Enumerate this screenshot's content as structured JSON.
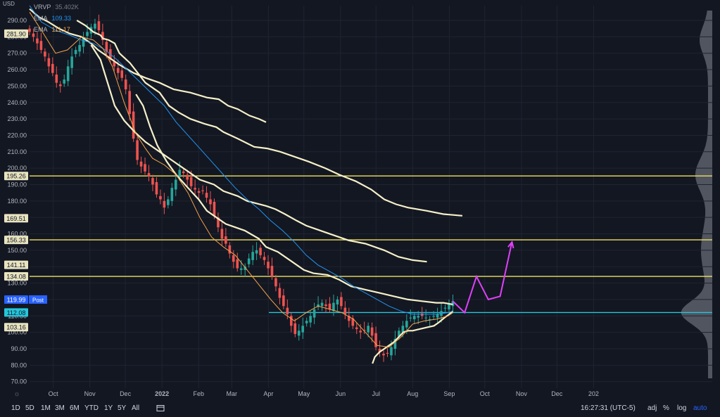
{
  "legend": {
    "vrvp_label": "VRVP",
    "vrvp_value": "35.402K",
    "ema1_label": "EMA",
    "ema1_value": "109.33",
    "ema2_label": "EMA",
    "ema2_value": "111.17",
    "ema1_color": "#2196f3",
    "ema2_color": "#f7a44a"
  },
  "currency": "USD",
  "toolbar": {
    "timeframes": [
      "1D",
      "5D",
      "1M",
      "3M",
      "6M",
      "YTD",
      "1Y",
      "5Y",
      "All"
    ],
    "clock": "16:27:31 (UTC-5)",
    "adj": "adj",
    "pct": "%",
    "log": "log",
    "auto": "auto",
    "icon": "calendar-range-icon"
  },
  "chart_data": {
    "type": "candlestick",
    "x_ticks": [
      "Oct",
      "Nov",
      "Dec",
      "2022",
      "Feb",
      "Mar",
      "Apr",
      "May",
      "Jun",
      "Jul",
      "Aug",
      "Sep",
      "Oct",
      "Nov",
      "Dec",
      "202"
    ],
    "y_ticks": [
      290,
      280,
      270,
      260,
      250,
      240,
      230,
      220,
      210,
      200,
      190,
      180,
      170,
      160,
      150,
      140,
      130,
      120,
      110,
      100,
      90,
      80,
      70
    ],
    "ylim": [
      66,
      299
    ],
    "price_labels": [
      {
        "value": 281.9,
        "text": "281.90",
        "bg": "#e8e4c0",
        "fg": "#131722"
      },
      {
        "value": 195.26,
        "text": "195.26",
        "bg": "#e8e4c0",
        "fg": "#131722"
      },
      {
        "value": 169.51,
        "text": "169.51",
        "bg": "#e8e4c0",
        "fg": "#131722"
      },
      {
        "value": 156.33,
        "text": "156.33",
        "bg": "#e8e4c0",
        "fg": "#131722"
      },
      {
        "value": 141.11,
        "text": "141.11",
        "bg": "#e8e4c0",
        "fg": "#131722"
      },
      {
        "value": 134.08,
        "text": "134.08",
        "bg": "#e8e4c0",
        "fg": "#131722"
      },
      {
        "value": 119.99,
        "text": "119.99",
        "bg": "#2962ff",
        "fg": "#ffffff",
        "tag": "Post"
      },
      {
        "value": 112.08,
        "text": "112.08",
        "bg": "#26c6da",
        "fg": "#131722"
      },
      {
        "value": 103.16,
        "text": "103.16",
        "bg": "#e8e4c0",
        "fg": "#131722"
      }
    ],
    "horizontal_levels": [
      {
        "value": 195.26,
        "color": "#f0e060"
      },
      {
        "value": 156.33,
        "color": "#f0e060"
      },
      {
        "value": 134.08,
        "color": "#f0e060"
      },
      {
        "value": 112.08,
        "color": "#26c6da"
      }
    ],
    "band_color": "#f5f0c8",
    "bands": [
      [
        [
          0,
          297
        ],
        [
          8,
          292
        ],
        [
          16,
          289
        ],
        [
          25,
          285
        ],
        [
          34,
          282
        ],
        [
          44,
          280
        ],
        [
          52,
          276
        ],
        [
          58,
          272
        ],
        [
          66,
          268
        ],
        [
          76,
          263
        ],
        [
          88,
          258
        ],
        [
          98,
          255
        ],
        [
          110,
          252
        ],
        [
          122,
          248
        ],
        [
          136,
          246
        ],
        [
          150,
          243
        ],
        [
          160,
          242
        ],
        [
          168,
          238
        ],
        [
          176,
          236
        ],
        [
          186,
          232
        ],
        [
          194,
          230
        ],
        [
          200,
          228
        ]
      ],
      [
        [
          40,
          290
        ],
        [
          47,
          287
        ],
        [
          54,
          283
        ],
        [
          60,
          281
        ],
        [
          62,
          279
        ],
        [
          67,
          278
        ],
        [
          72,
          276
        ],
        [
          76,
          270
        ],
        [
          85,
          264
        ],
        [
          98,
          252
        ],
        [
          110,
          246
        ],
        [
          118,
          238
        ],
        [
          126,
          234
        ],
        [
          136,
          230
        ],
        [
          148,
          227
        ],
        [
          158,
          225
        ],
        [
          164,
          222
        ],
        [
          176,
          218
        ],
        [
          190,
          213
        ],
        [
          201,
          212
        ],
        [
          212,
          210
        ],
        [
          224,
          207
        ],
        [
          236,
          204
        ],
        [
          250,
          200
        ],
        [
          262,
          196
        ],
        [
          276,
          192
        ],
        [
          289,
          187
        ],
        [
          300,
          181
        ],
        [
          310,
          178
        ],
        [
          320,
          176
        ],
        [
          336,
          174
        ],
        [
          350,
          172
        ],
        [
          366,
          171
        ]
      ],
      [
        [
          52,
          275
        ],
        [
          60,
          266
        ],
        [
          66,
          252
        ],
        [
          72,
          238
        ],
        [
          80,
          229
        ],
        [
          89,
          222
        ],
        [
          98,
          216
        ],
        [
          110,
          210
        ],
        [
          124,
          203
        ],
        [
          136,
          197
        ],
        [
          144,
          193
        ],
        [
          156,
          190
        ],
        [
          164,
          186
        ],
        [
          176,
          183
        ],
        [
          184,
          180
        ],
        [
          200,
          177
        ],
        [
          208,
          175
        ],
        [
          216,
          172
        ],
        [
          226,
          168
        ],
        [
          234,
          165
        ],
        [
          246,
          162
        ],
        [
          258,
          159
        ],
        [
          270,
          156
        ],
        [
          284,
          154
        ],
        [
          300,
          150
        ],
        [
          312,
          146
        ],
        [
          324,
          144
        ],
        [
          336,
          143
        ]
      ],
      [
        [
          90,
          245
        ],
        [
          96,
          238
        ],
        [
          102,
          225
        ],
        [
          108,
          214
        ],
        [
          116,
          204
        ],
        [
          124,
          196
        ],
        [
          134,
          188
        ],
        [
          143,
          181
        ],
        [
          150,
          174
        ],
        [
          158,
          170
        ],
        [
          166,
          166
        ],
        [
          174,
          164
        ],
        [
          182,
          162
        ],
        [
          194,
          157
        ],
        [
          200,
          152
        ],
        [
          210,
          149
        ],
        [
          222,
          143
        ],
        [
          232,
          138
        ],
        [
          240,
          136
        ],
        [
          252,
          135
        ],
        [
          262,
          132
        ],
        [
          272,
          128
        ],
        [
          284,
          126
        ],
        [
          296,
          124
        ],
        [
          308,
          122
        ],
        [
          320,
          120
        ],
        [
          332,
          119
        ],
        [
          344,
          118
        ],
        [
          350,
          118
        ],
        [
          358,
          117
        ]
      ],
      [
        [
          290,
          81
        ],
        [
          292,
          85
        ],
        [
          296,
          88
        ],
        [
          300,
          90
        ],
        [
          304,
          92
        ],
        [
          308,
          94
        ],
        [
          312,
          97
        ],
        [
          316,
          100
        ],
        [
          320,
          101
        ],
        [
          324,
          101
        ],
        [
          330,
          102
        ],
        [
          336,
          103
        ],
        [
          342,
          104
        ],
        [
          346,
          106
        ],
        [
          351,
          109
        ],
        [
          355,
          111
        ],
        [
          358,
          113
        ]
      ]
    ],
    "ema_blue": [
      [
        0,
        299
      ],
      [
        10,
        289
      ],
      [
        22,
        284
      ],
      [
        34,
        281
      ],
      [
        44,
        278
      ],
      [
        54,
        276
      ],
      [
        64,
        272
      ],
      [
        74,
        266
      ],
      [
        84,
        259
      ],
      [
        94,
        252
      ],
      [
        104,
        245
      ],
      [
        114,
        238
      ],
      [
        124,
        228
      ],
      [
        134,
        220
      ],
      [
        144,
        212
      ],
      [
        154,
        204
      ],
      [
        164,
        196
      ],
      [
        174,
        188
      ],
      [
        184,
        181
      ],
      [
        194,
        175
      ],
      [
        204,
        168
      ],
      [
        214,
        162
      ],
      [
        224,
        155
      ],
      [
        234,
        147
      ],
      [
        244,
        141
      ],
      [
        254,
        137
      ],
      [
        264,
        133
      ],
      [
        274,
        128
      ],
      [
        284,
        124
      ],
      [
        294,
        120
      ],
      [
        304,
        116
      ],
      [
        314,
        113
      ],
      [
        324,
        111
      ],
      [
        334,
        111
      ],
      [
        344,
        111
      ],
      [
        354,
        112
      ],
      [
        358,
        113
      ]
    ],
    "ema_orange": [
      [
        0,
        295
      ],
      [
        10,
        284
      ],
      [
        22,
        270
      ],
      [
        32,
        272
      ],
      [
        44,
        280
      ],
      [
        54,
        278
      ],
      [
        62,
        273
      ],
      [
        70,
        262
      ],
      [
        80,
        240
      ],
      [
        90,
        221
      ],
      [
        98,
        212
      ],
      [
        104,
        206
      ],
      [
        114,
        202
      ],
      [
        124,
        196
      ],
      [
        134,
        185
      ],
      [
        144,
        170
      ],
      [
        154,
        158
      ],
      [
        164,
        152
      ],
      [
        174,
        147
      ],
      [
        184,
        138
      ],
      [
        194,
        129
      ],
      [
        204,
        120
      ],
      [
        214,
        112
      ],
      [
        224,
        107
      ],
      [
        234,
        112
      ],
      [
        244,
        116
      ],
      [
        254,
        114
      ],
      [
        264,
        112
      ],
      [
        274,
        108
      ],
      [
        284,
        100
      ],
      [
        294,
        92
      ],
      [
        304,
        91
      ],
      [
        314,
        97
      ],
      [
        324,
        105
      ],
      [
        334,
        107
      ],
      [
        344,
        108
      ],
      [
        354,
        110
      ],
      [
        358,
        112
      ]
    ],
    "candle_up_color": "#26a69a",
    "candle_down_color": "#ef5350",
    "closes": [
      283,
      280,
      276,
      272,
      268,
      262,
      258,
      252,
      250,
      254,
      262,
      268,
      272,
      275,
      279,
      283,
      286,
      288,
      284,
      278,
      271,
      266,
      262,
      258,
      255,
      248,
      233,
      218,
      205,
      201,
      198,
      195,
      190,
      184,
      181,
      176,
      181,
      188,
      193,
      199,
      197,
      193,
      189,
      187,
      185,
      186,
      182,
      178,
      171,
      164,
      157,
      154,
      148,
      143,
      139,
      139,
      140,
      145,
      149,
      150,
      147,
      144,
      139,
      134,
      128,
      121,
      116,
      111,
      104,
      99,
      101,
      104,
      107,
      110,
      114,
      117,
      118,
      116,
      114,
      118,
      120,
      116,
      111,
      107,
      104,
      102,
      100,
      101,
      104,
      98,
      91,
      88,
      86,
      87,
      91,
      96,
      101,
      104,
      107,
      109,
      110,
      110,
      110,
      109,
      108,
      110,
      111,
      113,
      115,
      117,
      119
    ],
    "projection": {
      "color": "#e040fb",
      "points": [
        [
          358,
          119
        ],
        [
          368,
          112
        ],
        [
          378,
          134
        ],
        [
          388,
          120
        ],
        [
          398,
          122
        ],
        [
          408,
          155
        ]
      ]
    },
    "volume_profile_color": "#5d606b"
  }
}
